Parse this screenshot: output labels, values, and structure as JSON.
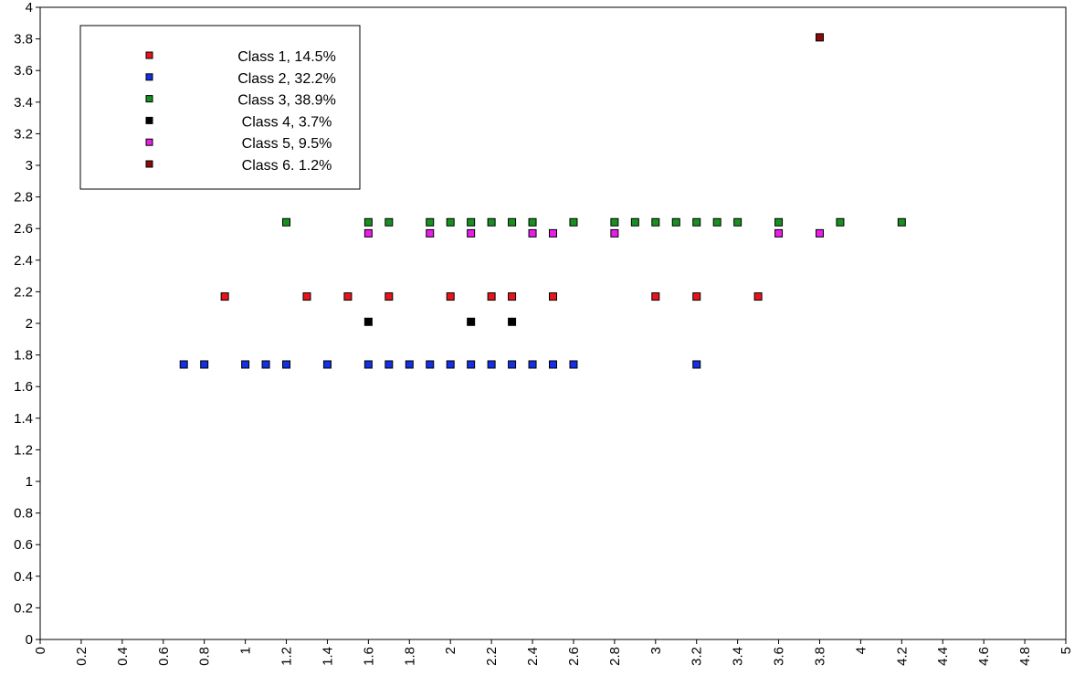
{
  "chart_data": {
    "type": "scatter",
    "title": "",
    "xlabel": "",
    "ylabel": "",
    "xlim": [
      0,
      5
    ],
    "ylim": [
      0,
      4
    ],
    "x_ticks": [
      "0",
      "0.2",
      "0.4",
      "0.6",
      "0.8",
      "1",
      "1.2",
      "1.4",
      "1.6",
      "1.8",
      "2",
      "2.2",
      "2.4",
      "2.6",
      "2.8",
      "3",
      "3.2",
      "3.4",
      "3.6",
      "3.8",
      "4",
      "4.2",
      "4.4",
      "4.6",
      "4.8",
      "5"
    ],
    "y_ticks": [
      "0",
      "0.2",
      "0.4",
      "0.6",
      "0.8",
      "1",
      "1.2",
      "1.4",
      "1.6",
      "1.8",
      "2",
      "2.2",
      "2.4",
      "2.6",
      "2.8",
      "3",
      "3.2",
      "3.4",
      "3.6",
      "3.8",
      "4"
    ],
    "grid": false,
    "legend_position": "top-left",
    "marker": "square",
    "series": [
      {
        "name": "Class 1, 14.5%",
        "color": "#e8141b",
        "points": [
          [
            0.9,
            2.17
          ],
          [
            1.3,
            2.17
          ],
          [
            1.5,
            2.17
          ],
          [
            1.7,
            2.17
          ],
          [
            2.0,
            2.17
          ],
          [
            2.2,
            2.17
          ],
          [
            2.3,
            2.17
          ],
          [
            2.5,
            2.17
          ],
          [
            3.0,
            2.17
          ],
          [
            3.2,
            2.17
          ],
          [
            3.5,
            2.17
          ]
        ]
      },
      {
        "name": "Class 2, 32.2%",
        "color": "#1530e0",
        "points": [
          [
            0.7,
            1.74
          ],
          [
            0.8,
            1.74
          ],
          [
            1.0,
            1.74
          ],
          [
            1.1,
            1.74
          ],
          [
            1.2,
            1.74
          ],
          [
            1.4,
            1.74
          ],
          [
            1.6,
            1.74
          ],
          [
            1.7,
            1.74
          ],
          [
            1.8,
            1.74
          ],
          [
            1.9,
            1.74
          ],
          [
            2.0,
            1.74
          ],
          [
            2.1,
            1.74
          ],
          [
            2.2,
            1.74
          ],
          [
            2.3,
            1.74
          ],
          [
            2.4,
            1.74
          ],
          [
            2.5,
            1.74
          ],
          [
            2.6,
            1.74
          ],
          [
            3.2,
            1.74
          ]
        ]
      },
      {
        "name": "Class 3, 38.9%",
        "color": "#18901e",
        "points": [
          [
            1.2,
            2.64
          ],
          [
            1.6,
            2.64
          ],
          [
            1.7,
            2.64
          ],
          [
            1.9,
            2.64
          ],
          [
            2.0,
            2.64
          ],
          [
            2.1,
            2.64
          ],
          [
            2.2,
            2.64
          ],
          [
            2.3,
            2.64
          ],
          [
            2.4,
            2.64
          ],
          [
            2.6,
            2.64
          ],
          [
            2.8,
            2.64
          ],
          [
            2.9,
            2.64
          ],
          [
            3.0,
            2.64
          ],
          [
            3.1,
            2.64
          ],
          [
            3.2,
            2.64
          ],
          [
            3.3,
            2.64
          ],
          [
            3.4,
            2.64
          ],
          [
            3.6,
            2.64
          ],
          [
            3.9,
            2.64
          ],
          [
            4.2,
            2.64
          ]
        ]
      },
      {
        "name": "Class 4, 3.7%",
        "color": "#000000",
        "points": [
          [
            1.6,
            2.01
          ],
          [
            2.1,
            2.01
          ],
          [
            2.3,
            2.01
          ]
        ]
      },
      {
        "name": "Class 5, 9.5%",
        "color": "#e81ee8",
        "points": [
          [
            1.6,
            2.57
          ],
          [
            1.9,
            2.57
          ],
          [
            2.1,
            2.57
          ],
          [
            2.4,
            2.57
          ],
          [
            2.5,
            2.57
          ],
          [
            2.8,
            2.57
          ],
          [
            3.6,
            2.57
          ],
          [
            3.8,
            2.57
          ]
        ]
      },
      {
        "name": "Class 6. 1.2%",
        "color": "#8b0a0a",
        "points": [
          [
            3.8,
            3.81
          ]
        ]
      }
    ]
  }
}
